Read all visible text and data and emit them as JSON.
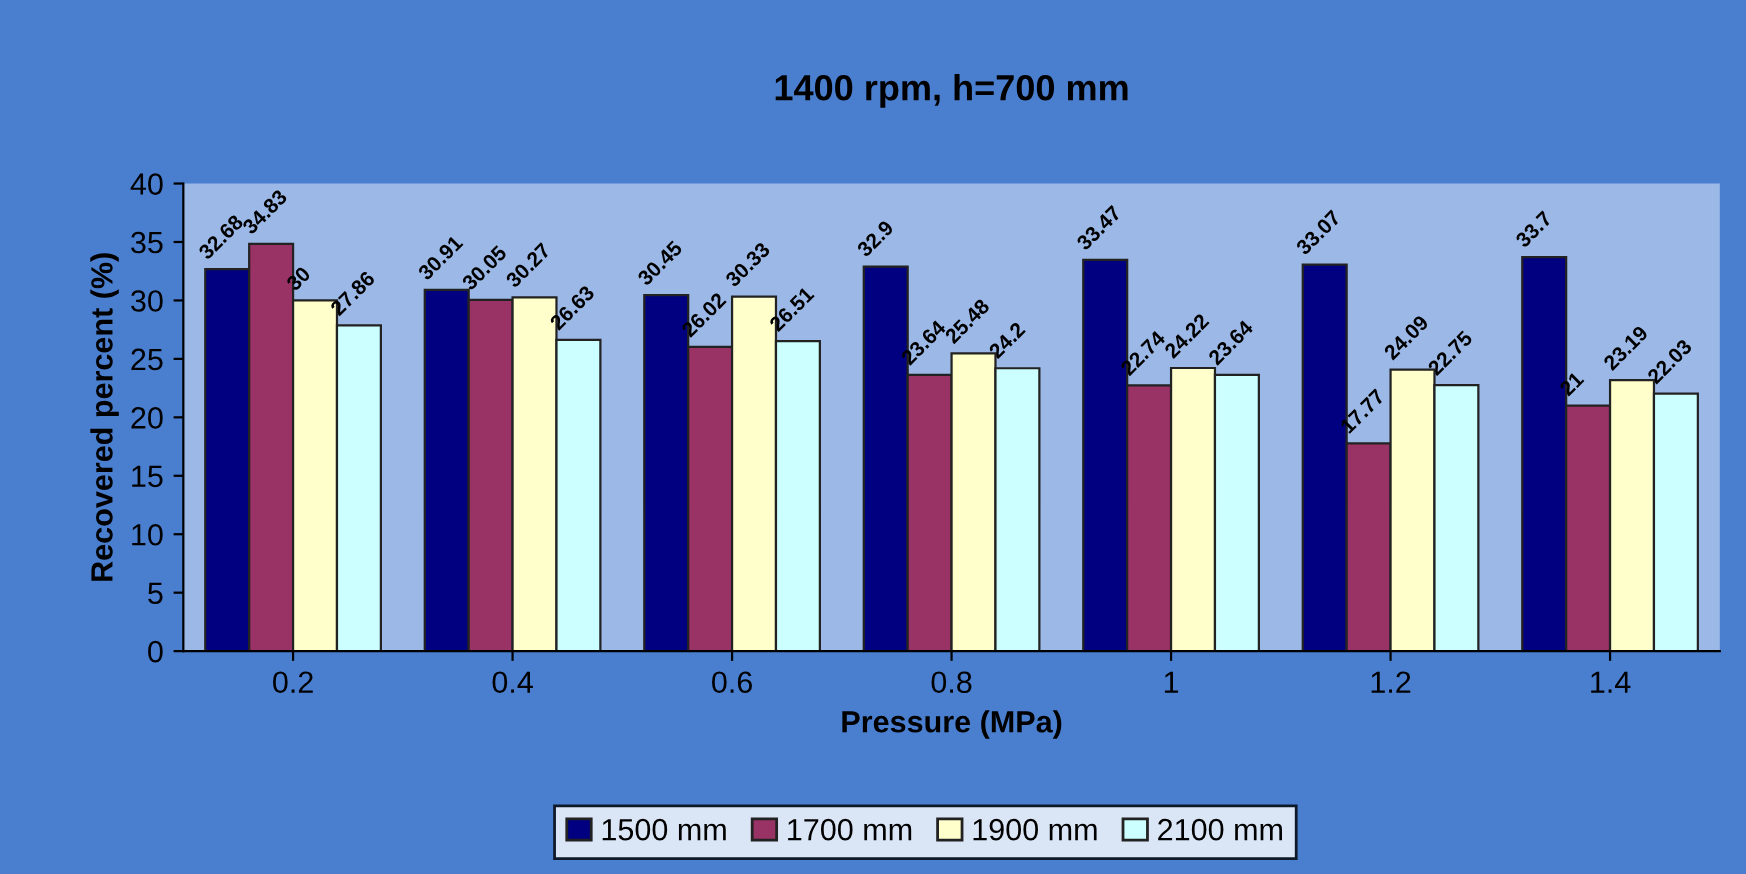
{
  "chart_data": {
    "type": "bar",
    "title": "1400 rpm, h=700 mm",
    "xlabel": "Pressure (MPa)",
    "ylabel": "Recovered percent (%)",
    "categories": [
      "0.2",
      "0.4",
      "0.6",
      "0.8",
      "1",
      "1.2",
      "1.4"
    ],
    "series": [
      {
        "name": "1500 mm",
        "color": "#000080",
        "values": [
          32.68,
          30.91,
          30.45,
          32.9,
          33.47,
          33.07,
          33.7
        ]
      },
      {
        "name": "1700 mm",
        "color": "#993366",
        "values": [
          34.83,
          30.05,
          26.02,
          23.64,
          22.74,
          17.77,
          21
        ]
      },
      {
        "name": "1900 mm",
        "color": "#ffffcc",
        "values": [
          30,
          30.27,
          30.33,
          25.48,
          24.22,
          24.09,
          23.19
        ]
      },
      {
        "name": "2100 mm",
        "color": "#ccffff",
        "values": [
          27.86,
          26.63,
          26.51,
          24.2,
          23.64,
          22.75,
          22.03
        ]
      }
    ],
    "ylim": [
      0,
      40
    ],
    "yticks": [
      0,
      5,
      10,
      15,
      20,
      25,
      30,
      35,
      40
    ],
    "grid": false,
    "legend": "bottom",
    "data_labels": true
  }
}
